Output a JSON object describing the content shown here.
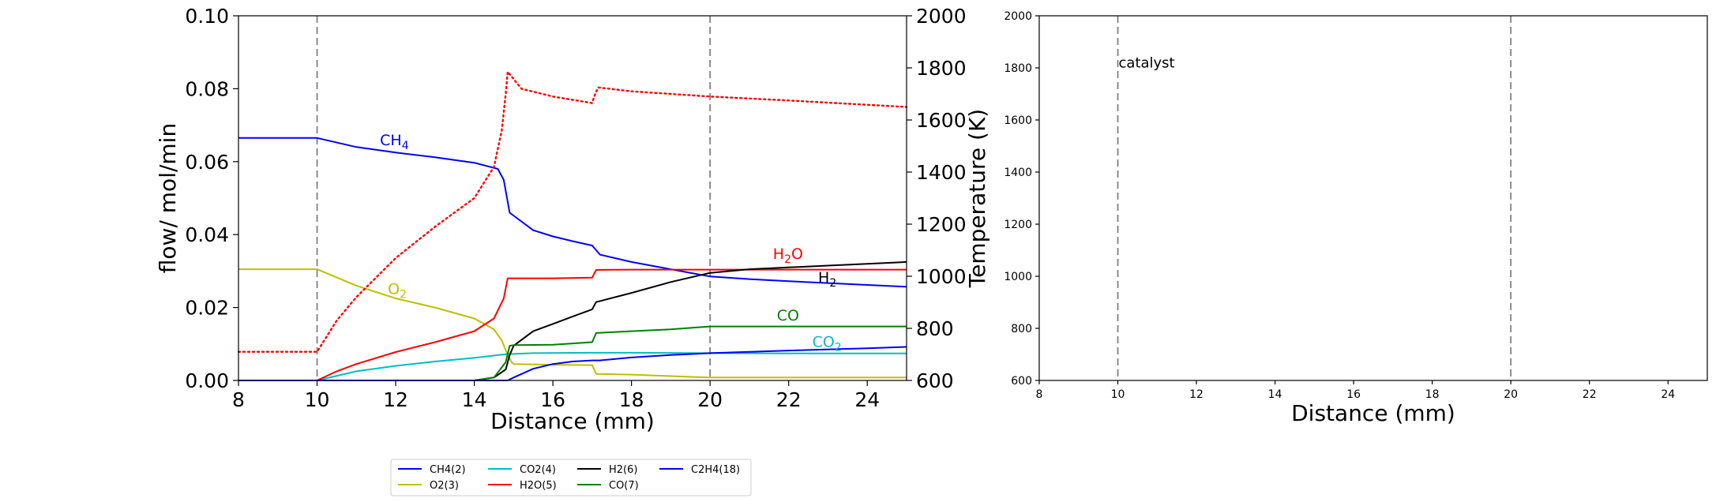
{
  "chart_data": [
    {
      "type": "line",
      "xlabel": "Distance (mm)",
      "ylabel": "flow/ mol/min",
      "ylabel_right": "Temperature (K)",
      "xlim": [
        8,
        25
      ],
      "ylim": [
        0,
        0.1
      ],
      "ylim_right": [
        600,
        2000
      ],
      "xticks": [
        "8",
        "10",
        "12",
        "14",
        "16",
        "18",
        "20",
        "22",
        "24"
      ],
      "yticks": [
        "0.00",
        "0.02",
        "0.04",
        "0.06",
        "0.08",
        "0.10"
      ],
      "yticks_right": [
        "600",
        "800",
        "1000",
        "1200",
        "1400",
        "1600",
        "1800",
        "2000"
      ],
      "grid": false,
      "legend_position": "bottom-center",
      "vertical_lines": [
        10,
        20
      ],
      "series": [
        {
          "name": "CH4(2)",
          "color": "#0000ff",
          "x": [
            8,
            10,
            11,
            12,
            13,
            14,
            14.6,
            14.75,
            14.9,
            15.5,
            16,
            16.5,
            17,
            17.2,
            18,
            19,
            20,
            21,
            22,
            23,
            24,
            25
          ],
          "y": [
            0.0665,
            0.0665,
            0.064,
            0.0625,
            0.0612,
            0.0597,
            0.058,
            0.055,
            0.046,
            0.0412,
            0.0395,
            0.0382,
            0.037,
            0.0345,
            0.0325,
            0.0305,
            0.0285,
            0.0278,
            0.0272,
            0.0267,
            0.0262,
            0.0257
          ]
        },
        {
          "name": "O2(3)",
          "color": "#bfbf00",
          "x": [
            8,
            10,
            11,
            12,
            13,
            14,
            14.5,
            14.7,
            14.85,
            14.95,
            15,
            16,
            17,
            17.1,
            18,
            19,
            20,
            22,
            25
          ],
          "y": [
            0.0305,
            0.0305,
            0.026,
            0.0225,
            0.02,
            0.017,
            0.014,
            0.011,
            0.007,
            0.005,
            0.0045,
            0.0043,
            0.0042,
            0.0018,
            0.0016,
            0.0012,
            0.0008,
            0.0008,
            0.0008
          ]
        },
        {
          "name": "CO2(4)",
          "color": "#00bfbf",
          "x": [
            8,
            10,
            11,
            12,
            13,
            14,
            14.8,
            15.5,
            17,
            18,
            20,
            22,
            25
          ],
          "y": [
            0.0,
            0.0,
            0.0025,
            0.004,
            0.0052,
            0.0062,
            0.0072,
            0.0075,
            0.0076,
            0.0076,
            0.0075,
            0.0074,
            0.0074
          ]
        },
        {
          "name": "H2O(5)",
          "color": "#ff0000",
          "x": [
            8,
            10,
            10.5,
            11,
            12,
            13,
            14,
            14.5,
            14.75,
            14.85,
            15,
            16,
            17,
            17.1,
            18,
            20,
            22,
            25
          ],
          "y": [
            0.0,
            0.0,
            0.0025,
            0.0045,
            0.0078,
            0.0105,
            0.0135,
            0.017,
            0.0225,
            0.028,
            0.028,
            0.028,
            0.0282,
            0.0303,
            0.0304,
            0.0304,
            0.0304,
            0.0304
          ]
        },
        {
          "name": "H2(6)",
          "color": "#000000",
          "x": [
            8,
            14,
            14.5,
            14.8,
            14.9,
            15,
            15.5,
            16,
            16.5,
            17,
            17.1,
            18,
            19,
            20,
            21,
            22,
            23,
            24,
            25
          ],
          "y": [
            0.0,
            0.0,
            0.0008,
            0.003,
            0.007,
            0.0095,
            0.0135,
            0.0155,
            0.0175,
            0.0195,
            0.0215,
            0.024,
            0.027,
            0.0295,
            0.0305,
            0.031,
            0.0315,
            0.032,
            0.0325
          ]
        },
        {
          "name": "CO(7)",
          "color": "#008000",
          "x": [
            8,
            14,
            14.5,
            14.8,
            14.9,
            15,
            16,
            17,
            17.1,
            18,
            19,
            20,
            22,
            25
          ],
          "y": [
            0.0,
            0.0,
            0.0008,
            0.005,
            0.0095,
            0.0097,
            0.0098,
            0.0105,
            0.013,
            0.0135,
            0.014,
            0.0148,
            0.0148,
            0.0148
          ]
        },
        {
          "name": "C2H4(18)",
          "color": "#0000ff",
          "x": [
            8,
            14.85,
            15,
            15.5,
            16,
            16.5,
            17,
            17.2,
            18,
            19,
            20,
            22,
            24,
            25
          ],
          "y": [
            0.0,
            0.0,
            0.0008,
            0.0032,
            0.0045,
            0.0052,
            0.0055,
            0.0055,
            0.0063,
            0.007,
            0.0075,
            0.0082,
            0.0088,
            0.0092
          ]
        },
        {
          "name": "Temperature",
          "color": "#ff0000",
          "axis": "right",
          "dotted": true,
          "x": [
            8,
            10,
            10.5,
            11,
            12,
            13,
            14,
            14.5,
            14.7,
            14.8,
            14.85,
            15.2,
            16,
            17,
            17.05,
            17.15,
            18,
            20,
            22,
            25
          ],
          "y": [
            710,
            710,
            830,
            920,
            1070,
            1190,
            1300,
            1420,
            1560,
            1700,
            1785,
            1720,
            1690,
            1665,
            1690,
            1725,
            1710,
            1690,
            1675,
            1650
          ]
        }
      ],
      "annotations": [
        {
          "text": "CH",
          "sub": "4",
          "x": 11.6,
          "y": 0.0645,
          "color": "#0000ff"
        },
        {
          "text": "O",
          "sub": "2",
          "x": 11.8,
          "y": 0.0237,
          "color": "#bfbf00"
        },
        {
          "text": "H",
          "sub": "2",
          "x": 22.75,
          "y": 0.0268,
          "color": "#000000"
        },
        {
          "text": "H",
          "sub": "2",
          "after": "O",
          "x": 21.6,
          "y": 0.0333,
          "color": "#ff0000"
        },
        {
          "text": "CO",
          "x": 21.7,
          "y": 0.0165,
          "color": "#008000"
        },
        {
          "text": "CO",
          "sub": "2",
          "x": 22.6,
          "y": 0.0092,
          "color": "#00bfbf"
        }
      ]
    },
    {
      "type": "line",
      "xlabel": "Distance (mm)",
      "xlim": [
        8,
        25
      ],
      "ylim": [
        600,
        2000
      ],
      "xticks": [
        "8",
        "10",
        "12",
        "14",
        "16",
        "18",
        "20",
        "22",
        "24"
      ],
      "yticks": [
        "600",
        "800",
        "1000",
        "1200",
        "1400",
        "1600",
        "1800",
        "2000"
      ],
      "grid": false,
      "vertical_lines": [
        10,
        20
      ],
      "annotation": {
        "text": "catalyst",
        "x": 10.0,
        "y": 1820
      },
      "series": []
    }
  ]
}
